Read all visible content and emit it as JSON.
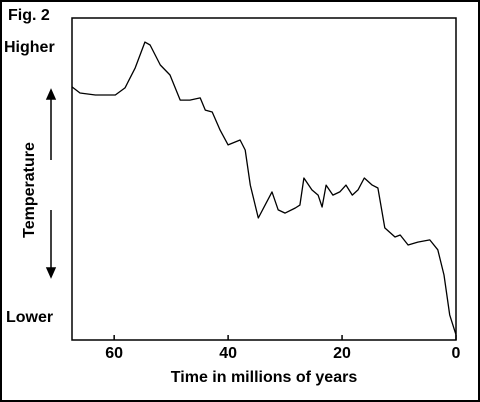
{
  "chart_data": {
    "type": "line",
    "title": "Fig. 2",
    "xlabel": "Time in millions of years",
    "ylabel": "Temperature",
    "y_high_label": "Higher",
    "y_low_label": "Lower",
    "xlim": [
      67.4,
      0
    ],
    "ylim": [
      0,
      100
    ],
    "xticks": [
      60,
      40,
      20,
      0
    ],
    "color": "#000000",
    "x": [
      67.4,
      66.0,
      63.3,
      59.8,
      58.1,
      56.3,
      54.6,
      53.7,
      51.9,
      50.2,
      48.4,
      46.7,
      44.9,
      44.0,
      42.8,
      41.4,
      40.0,
      37.9,
      37.0,
      36.1,
      34.7,
      33.5,
      32.3,
      31.2,
      30.0,
      28.2,
      27.4,
      26.7,
      25.3,
      24.2,
      23.5,
      22.8,
      21.6,
      20.4,
      19.3,
      18.2,
      17.2,
      16.1,
      14.7,
      13.7,
      12.5,
      10.7,
      9.8,
      8.4,
      6.7,
      4.6,
      3.2,
      2.1,
      1.1,
      0
    ],
    "values": [
      78.6,
      76.7,
      76.1,
      76.1,
      78.3,
      84.5,
      92.5,
      91.6,
      85.4,
      82.3,
      74.5,
      74.5,
      75.2,
      71.4,
      70.8,
      65.2,
      60.6,
      62.1,
      59.0,
      48.1,
      37.9,
      41.9,
      46.0,
      40.4,
      39.4,
      41.0,
      41.9,
      50.3,
      46.6,
      45.0,
      41.3,
      48.1,
      45.0,
      46.0,
      48.1,
      45.0,
      46.6,
      50.3,
      48.1,
      47.2,
      34.8,
      32.0,
      32.6,
      29.5,
      30.4,
      31.1,
      28.0,
      20.2,
      7.8,
      1.6
    ]
  }
}
